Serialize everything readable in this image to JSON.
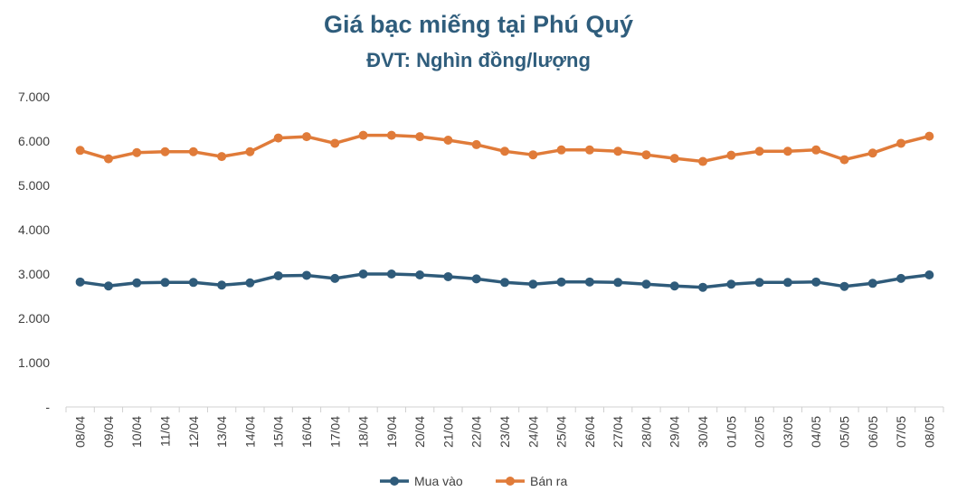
{
  "chart_data": {
    "type": "line",
    "title": "Giá bạc miếng tại Phú Quý",
    "subtitle": "ĐVT: Nghìn đồng/lượng",
    "categories": [
      "08/04",
      "09/04",
      "10/04",
      "11/04",
      "12/04",
      "13/04",
      "14/04",
      "15/04",
      "16/04",
      "17/04",
      "18/04",
      "19/04",
      "20/04",
      "21/04",
      "22/04",
      "23/04",
      "24/04",
      "25/04",
      "26/04",
      "27/04",
      "28/04",
      "29/04",
      "30/04",
      "01/05",
      "02/05",
      "03/05",
      "04/05",
      "05/05",
      "06/05",
      "07/05",
      "08/05"
    ],
    "series": [
      {
        "name": "Mua vào",
        "color": "#2f5b7a",
        "values": [
          2820,
          2730,
          2800,
          2810,
          2810,
          2750,
          2800,
          2960,
          2970,
          2900,
          3000,
          3000,
          2980,
          2940,
          2890,
          2810,
          2770,
          2820,
          2820,
          2810,
          2770,
          2730,
          2700,
          2770,
          2810,
          2810,
          2820,
          2720,
          2790,
          2900,
          2980
        ]
      },
      {
        "name": "Bán ra",
        "color": "#e07b39",
        "values": [
          5790,
          5600,
          5740,
          5760,
          5760,
          5650,
          5760,
          6070,
          6100,
          5950,
          6130,
          6130,
          6100,
          6020,
          5920,
          5770,
          5690,
          5800,
          5800,
          5770,
          5690,
          5610,
          5540,
          5680,
          5770,
          5770,
          5800,
          5580,
          5730,
          5950,
          6110
        ]
      }
    ],
    "ylim": [
      0,
      7000
    ],
    "yticks": [
      "-",
      "1.000",
      "2.000",
      "3.000",
      "4.000",
      "5.000",
      "6.000",
      "7.000"
    ],
    "grid": false,
    "legend": "bottom-center"
  }
}
